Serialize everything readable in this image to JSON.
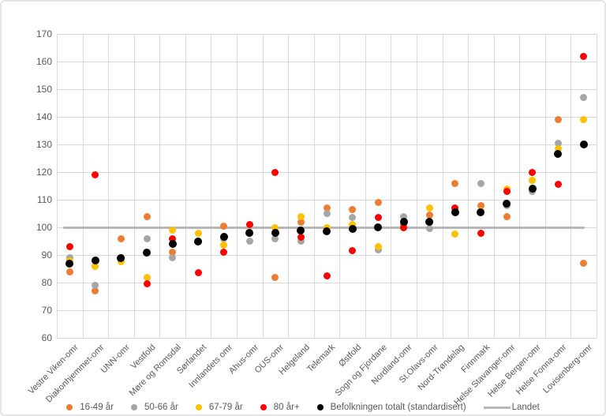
{
  "chart_data": {
    "type": "scatter",
    "categories": [
      "Vestre Viken-omr",
      "Diakonhjemmet-omr",
      "UNN-omr",
      "Vestfold",
      "Møre og Romsdal",
      "Sørlandet",
      "Innlandets omr",
      "Ahus-omr",
      "OUS-omr",
      "Helgeland",
      "Telemark",
      "Østfold",
      "Sogn og Fjordane",
      "Nordland-omr",
      "St.Olavs-omr",
      "Nord-Trøndelag",
      "Finnmark",
      "Helse Stavanger-omr",
      "Helse Bergen-omr",
      "Helse Fonna-omr",
      "Lovisenberg-omr"
    ],
    "series": [
      {
        "name": "16-49 år",
        "color": "#ED7D31",
        "values": [
          84,
          77,
          96,
          104,
          91,
          95,
          100.5,
          98,
          82,
          102,
          107,
          106.5,
          109,
          101,
          104.5,
          116,
          108,
          104,
          117,
          139,
          87
        ]
      },
      {
        "name": "50-66 år",
        "color": "#A6A6A6",
        "values": [
          89,
          79,
          89,
          96,
          89,
          95,
          96,
          95,
          96,
          95,
          105,
          103.5,
          92,
          104,
          99.5,
          106,
          116,
          108,
          113,
          130.5,
          147
        ]
      },
      {
        "name": "67-79 år",
        "color": "#FFC000",
        "values": [
          88,
          86,
          87.5,
          82,
          99,
          98,
          93.5,
          101,
          100,
          104,
          100,
          101,
          93,
          102,
          107,
          97.5,
          106,
          114,
          117,
          128.5,
          139
        ]
      },
      {
        "name": "80 år+",
        "color": "#FF0000",
        "values": [
          93,
          119,
          89,
          79.5,
          96,
          83.5,
          91,
          101,
          120,
          96.5,
          82.5,
          91.5,
          103.5,
          100,
          102,
          107,
          98,
          113,
          120,
          115.5,
          162
        ]
      },
      {
        "name": "Befolkningen totalt (standardisert)",
        "color": "#000000",
        "values": [
          87,
          88,
          89,
          91,
          94,
          95,
          96.5,
          98,
          98,
          99,
          98.5,
          99.5,
          100,
          102,
          102,
          105.5,
          105.5,
          108.5,
          114,
          126.5,
          130
        ]
      }
    ],
    "reference_line": {
      "name": "Landet",
      "value": 100,
      "color": "#B7B7B7"
    },
    "title": "",
    "xlabel": "",
    "ylabel": "",
    "ylim": [
      60,
      170
    ],
    "yticks": [
      60,
      70,
      80,
      90,
      100,
      110,
      120,
      130,
      140,
      150,
      160,
      170
    ],
    "grid": true,
    "legend_position": "bottom"
  }
}
